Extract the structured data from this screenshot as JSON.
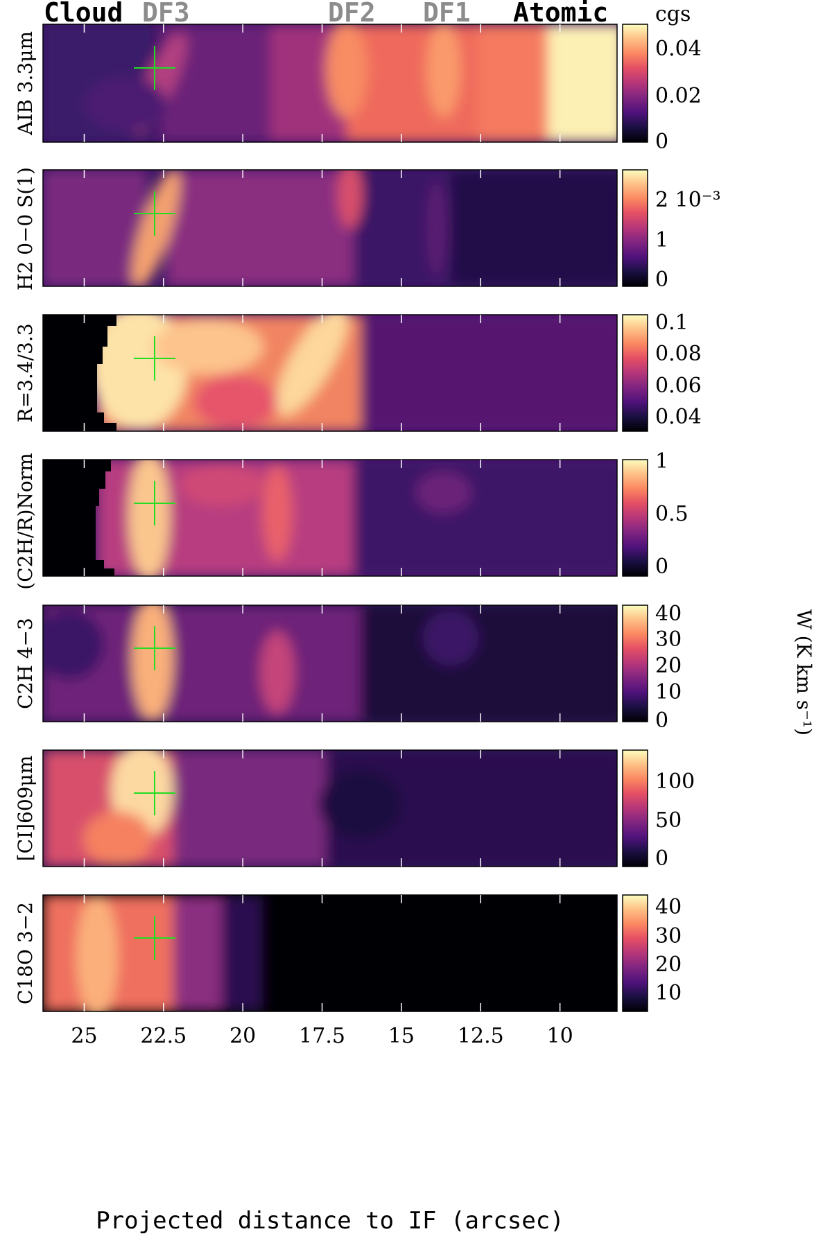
{
  "header_labels": [
    {
      "text": "Cloud",
      "color": "#000000"
    },
    {
      "text": "DF3",
      "color": "#8c8c8c"
    },
    {
      "text": "DF2",
      "color": "#8c8c8c"
    },
    {
      "text": "DF1",
      "color": "#8c8c8c"
    },
    {
      "text": "Atomic",
      "color": "#000000"
    }
  ],
  "xlabel": "Projected distance to IF (arcsec)",
  "x_ticks": [
    "25",
    "22.5",
    "20",
    "17.5",
    "15",
    "12.5",
    "10"
  ],
  "colormap": "magma",
  "marker_color": "#22dd22",
  "chart_data": [
    {
      "type": "heatmap",
      "ylabel": "AIB 3.3μm",
      "colorbar_unit": "cgs",
      "colorbar_ticks": [
        "0.04",
        "0.02",
        "0"
      ],
      "vmin": 0,
      "vmax": 0.048
    },
    {
      "type": "heatmap",
      "ylabel": "H2 0−0 S(1)",
      "colorbar_unit": "",
      "colorbar_ticks": [
        "2 10⁻³",
        "1",
        "0"
      ],
      "vmin": 0,
      "vmax": 0.0027
    },
    {
      "type": "heatmap",
      "ylabel": "R=3.4/3.3",
      "colorbar_unit": "",
      "colorbar_ticks": [
        "0.1",
        "0.08",
        "0.06",
        "0.04"
      ],
      "vmin": 0.03,
      "vmax": 0.105
    },
    {
      "type": "heatmap",
      "ylabel": "(C2H/R)Norm",
      "colorbar_unit": "",
      "colorbar_ticks": [
        "1",
        "0.5",
        "0"
      ],
      "vmin": 0,
      "vmax": 1
    },
    {
      "type": "heatmap",
      "ylabel": "C2H 4−3",
      "colorbar_unit": "",
      "colorbar_ticks": [
        "40",
        "30",
        "20",
        "10",
        "0"
      ],
      "vmin": 0,
      "vmax": 44
    },
    {
      "type": "heatmap",
      "ylabel": "[CI]609μm",
      "colorbar_unit": "",
      "colorbar_ticks": [
        "100",
        "50",
        "0"
      ],
      "vmin": 0,
      "vmax": 140
    },
    {
      "type": "heatmap",
      "ylabel": "C18O 3−2",
      "colorbar_unit": "",
      "colorbar_ticks": [
        "40",
        "30",
        "20",
        "10"
      ],
      "vmin": 2,
      "vmax": 45
    }
  ],
  "shared_colorbar_label": "W (K km s⁻¹)",
  "marker_x_arcsec": 23.0,
  "x_range_arcsec": [
    26.3,
    8.2
  ]
}
